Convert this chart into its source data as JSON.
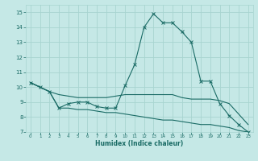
{
  "xlabel": "Humidex (Indice chaleur)",
  "background_color": "#c5e8e6",
  "grid_color": "#a8d4d0",
  "line_color": "#1a6b65",
  "x_values": [
    0,
    1,
    2,
    3,
    4,
    5,
    6,
    7,
    8,
    9,
    10,
    11,
    12,
    13,
    14,
    15,
    16,
    17,
    18,
    19,
    20,
    21,
    22,
    23
  ],
  "line_main": [
    10.3,
    10.0,
    9.7,
    8.6,
    8.9,
    9.0,
    9.0,
    8.7,
    8.6,
    8.6,
    10.1,
    11.5,
    14.0,
    14.9,
    14.3,
    14.3,
    13.7,
    13.0,
    10.4,
    10.4,
    8.9,
    8.1,
    7.5,
    7.0
  ],
  "line_mid": [
    10.3,
    10.0,
    9.7,
    9.5,
    9.4,
    9.3,
    9.3,
    9.3,
    9.3,
    9.4,
    9.5,
    9.5,
    9.5,
    9.5,
    9.5,
    9.5,
    9.3,
    9.2,
    9.2,
    9.2,
    9.1,
    8.9,
    8.2,
    7.5
  ],
  "line_low": [
    10.3,
    10.0,
    9.7,
    8.6,
    8.6,
    8.5,
    8.5,
    8.4,
    8.3,
    8.3,
    8.2,
    8.1,
    8.0,
    7.9,
    7.8,
    7.8,
    7.7,
    7.6,
    7.5,
    7.5,
    7.4,
    7.3,
    7.1,
    7.0
  ],
  "ylim": [
    7.0,
    15.5
  ],
  "xlim": [
    -0.5,
    23.5
  ],
  "yticks": [
    7,
    8,
    9,
    10,
    11,
    12,
    13,
    14,
    15
  ],
  "xticks": [
    0,
    1,
    2,
    3,
    4,
    5,
    6,
    7,
    8,
    9,
    10,
    11,
    12,
    13,
    14,
    15,
    16,
    17,
    18,
    19,
    20,
    21,
    22,
    23
  ]
}
